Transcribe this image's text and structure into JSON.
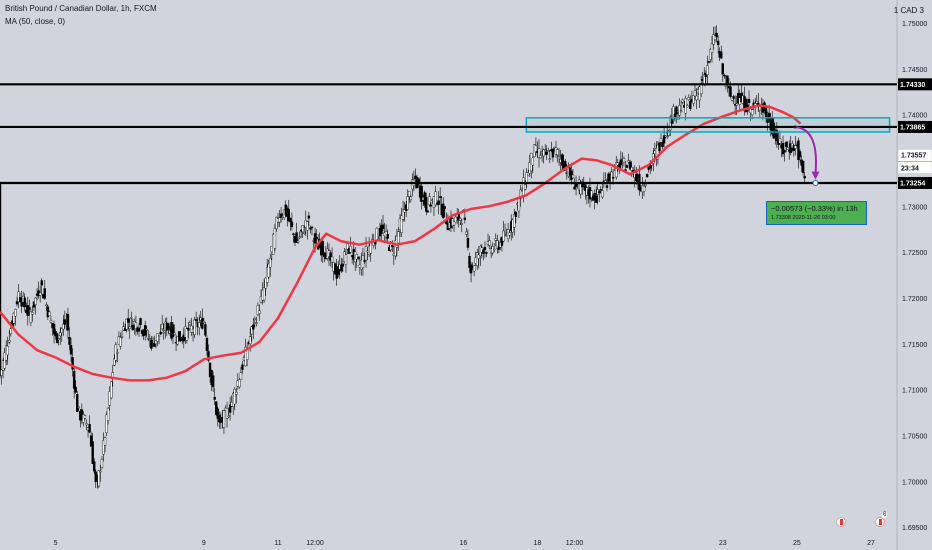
{
  "legend": {
    "title": "British Pound / Canadian Dollar, 1h, FXCM",
    "indicator": "MA (50, close, 0)",
    "unit": "1 CAD 3"
  },
  "chart_data": {
    "type": "candlestick",
    "symbol": "GBPCAD",
    "timeframe": "1h",
    "ylim": [
      1.6925,
      1.7525
    ],
    "x_range_days": [
      3.5,
      27.7
    ],
    "y_ticks": [
      "1.75000",
      "1.74500",
      "1.74000",
      "1.73500",
      "1.73000",
      "1.72500",
      "1.72000",
      "1.71500",
      "1.71000",
      "1.70500",
      "1.70000",
      "1.69500"
    ],
    "y_tick_values": [
      1.75,
      1.745,
      1.74,
      1.735,
      1.73,
      1.725,
      1.72,
      1.715,
      1.71,
      1.705,
      1.7,
      1.695
    ],
    "x_ticks": [
      {
        "label": "5",
        "day": 5.0
      },
      {
        "label": "9",
        "day": 9.0
      },
      {
        "label": "11",
        "day": 11.0
      },
      {
        "label": "12:00",
        "day": 12.0
      },
      {
        "label": "16",
        "day": 16.0
      },
      {
        "label": "18",
        "day": 18.0
      },
      {
        "label": "12:00",
        "day": 19.0
      },
      {
        "label": "23",
        "day": 23.0
      },
      {
        "label": "25",
        "day": 25.0
      },
      {
        "label": "27",
        "day": 27.0
      }
    ],
    "price_path": [
      [
        3.5,
        1.7115
      ],
      [
        4.0,
        1.7205
      ],
      [
        4.3,
        1.718
      ],
      [
        4.6,
        1.7215
      ],
      [
        5.0,
        1.7155
      ],
      [
        5.3,
        1.7175
      ],
      [
        5.6,
        1.7075
      ],
      [
        5.9,
        1.706
      ],
      [
        6.1,
        1.699
      ],
      [
        6.3,
        1.704
      ],
      [
        6.6,
        1.714
      ],
      [
        6.9,
        1.7175
      ],
      [
        7.3,
        1.717
      ],
      [
        7.6,
        1.715
      ],
      [
        8.0,
        1.717
      ],
      [
        8.3,
        1.7155
      ],
      [
        8.6,
        1.7165
      ],
      [
        9.0,
        1.7175
      ],
      [
        9.2,
        1.711
      ],
      [
        9.4,
        1.706
      ],
      [
        9.7,
        1.708
      ],
      [
        10.0,
        1.712
      ],
      [
        10.3,
        1.7165
      ],
      [
        10.6,
        1.7205
      ],
      [
        10.8,
        1.7245
      ],
      [
        11.0,
        1.729
      ],
      [
        11.2,
        1.7295
      ],
      [
        11.5,
        1.726
      ],
      [
        11.8,
        1.7285
      ],
      [
        12.0,
        1.726
      ],
      [
        12.3,
        1.725
      ],
      [
        12.6,
        1.7225
      ],
      [
        12.9,
        1.7255
      ],
      [
        13.2,
        1.7235
      ],
      [
        13.5,
        1.726
      ],
      [
        13.8,
        1.7275
      ],
      [
        14.1,
        1.725
      ],
      [
        14.4,
        1.7295
      ],
      [
        14.7,
        1.733
      ],
      [
        15.0,
        1.73
      ],
      [
        15.3,
        1.731
      ],
      [
        15.6,
        1.728
      ],
      [
        16.0,
        1.729
      ],
      [
        16.2,
        1.723
      ],
      [
        16.5,
        1.7255
      ],
      [
        16.8,
        1.7255
      ],
      [
        17.0,
        1.726
      ],
      [
        17.3,
        1.728
      ],
      [
        17.6,
        1.732
      ],
      [
        17.9,
        1.736
      ],
      [
        18.2,
        1.7355
      ],
      [
        18.5,
        1.736
      ],
      [
        18.8,
        1.734
      ],
      [
        19.0,
        1.7325
      ],
      [
        19.3,
        1.7315
      ],
      [
        19.6,
        1.731
      ],
      [
        19.9,
        1.733
      ],
      [
        20.2,
        1.7345
      ],
      [
        20.5,
        1.7345
      ],
      [
        20.8,
        1.732
      ],
      [
        21.1,
        1.735
      ],
      [
        21.4,
        1.7375
      ],
      [
        21.7,
        1.7405
      ],
      [
        22.0,
        1.741
      ],
      [
        22.3,
        1.742
      ],
      [
        22.6,
        1.7455
      ],
      [
        22.8,
        1.749
      ],
      [
        23.0,
        1.7445
      ],
      [
        23.2,
        1.742
      ],
      [
        23.5,
        1.7415
      ],
      [
        23.8,
        1.7405
      ],
      [
        24.0,
        1.7415
      ],
      [
        24.2,
        1.7395
      ],
      [
        24.4,
        1.738
      ],
      [
        24.6,
        1.736
      ],
      [
        24.8,
        1.7365
      ],
      [
        25.0,
        1.7365
      ],
      [
        25.1,
        1.7345
      ],
      [
        25.25,
        1.7325
      ]
    ],
    "moving_average": {
      "name": "MA (50, close, 0)",
      "color": "#f23645",
      "points": [
        [
          3.5,
          1.7185
        ],
        [
          4.0,
          1.716
        ],
        [
          4.5,
          1.7143
        ],
        [
          5.0,
          1.7135
        ],
        [
          5.5,
          1.7125
        ],
        [
          6.0,
          1.7117
        ],
        [
          6.5,
          1.7113
        ],
        [
          7.0,
          1.711
        ],
        [
          7.5,
          1.711
        ],
        [
          8.0,
          1.7113
        ],
        [
          8.5,
          1.712
        ],
        [
          9.0,
          1.7133
        ],
        [
          9.5,
          1.7137
        ],
        [
          10.0,
          1.714
        ],
        [
          10.5,
          1.7152
        ],
        [
          11.0,
          1.7178
        ],
        [
          11.5,
          1.7215
        ],
        [
          12.0,
          1.7255
        ],
        [
          12.3,
          1.727
        ],
        [
          12.7,
          1.7262
        ],
        [
          13.2,
          1.7258
        ],
        [
          13.7,
          1.7263
        ],
        [
          14.2,
          1.7258
        ],
        [
          14.7,
          1.7262
        ],
        [
          15.2,
          1.7275
        ],
        [
          15.7,
          1.729
        ],
        [
          16.2,
          1.7297
        ],
        [
          16.7,
          1.73
        ],
        [
          17.2,
          1.7305
        ],
        [
          17.7,
          1.7312
        ],
        [
          18.2,
          1.7325
        ],
        [
          18.7,
          1.734
        ],
        [
          19.2,
          1.7352
        ],
        [
          19.6,
          1.735
        ],
        [
          20.0,
          1.7345
        ],
        [
          20.5,
          1.7335
        ],
        [
          21.0,
          1.7345
        ],
        [
          21.5,
          1.7365
        ],
        [
          22.0,
          1.7378
        ],
        [
          22.5,
          1.739
        ],
        [
          23.0,
          1.7398
        ],
        [
          23.5,
          1.7405
        ],
        [
          24.0,
          1.741
        ],
        [
          24.3,
          1.7408
        ],
        [
          24.6,
          1.7403
        ],
        [
          24.9,
          1.7397
        ],
        [
          25.1,
          1.739
        ]
      ]
    },
    "horizontal_levels": [
      {
        "value": 1.7433,
        "label": "1.74330",
        "color": "#000000"
      },
      {
        "value": 1.73865,
        "label": "1.73865",
        "color": "#000000"
      },
      {
        "value": 1.73254,
        "label": "1.73254",
        "color": "#000000"
      }
    ],
    "zone_rectangle": {
      "x0": 17.7,
      "x1": 27.5,
      "y0": 1.73965,
      "y1": 1.7381,
      "color": "#00acc1"
    },
    "axis_labels": [
      {
        "label": "1.73557",
        "value": 1.73557,
        "style": "white"
      },
      {
        "label": "23:34",
        "value": 1.7342,
        "style": "white"
      }
    ],
    "projection_arrow": {
      "x0": 24.95,
      "y0": 1.73865,
      "x1": 25.5,
      "y1": 1.7329,
      "color": "#9c27b0"
    },
    "measure": {
      "change": "−0.00573 (−0.33%) in 13h",
      "detail_price": "1.73308",
      "detail_date": "2020-11-26",
      "detail_time": "03:00"
    },
    "event_flags": [
      {
        "x": 26.2,
        "count": ""
      },
      {
        "x": 27.7,
        "count": "2"
      },
      {
        "x": 28.5,
        "count": "2"
      },
      {
        "x": 30.0,
        "count": "6"
      }
    ],
    "colors": {
      "up": "#000000",
      "down": "#000000",
      "background": "#d1d4dc"
    }
  }
}
